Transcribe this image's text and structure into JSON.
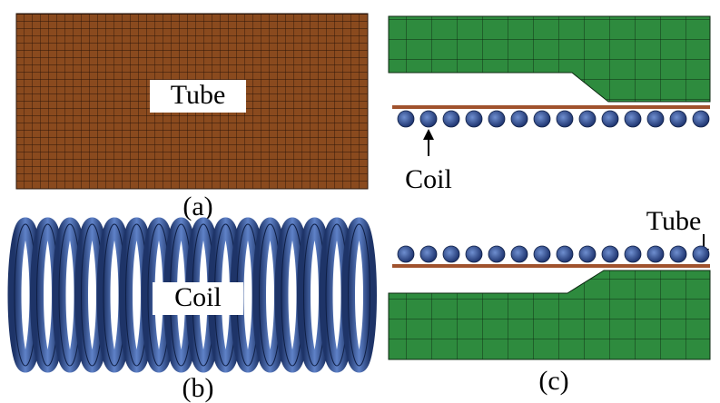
{
  "panels": [
    {
      "label": "(a)",
      "tag": "Tube"
    },
    {
      "label": "(b)",
      "tag": "Coil"
    },
    {
      "label": "(c)",
      "coil_tag": "Coil",
      "tube_tag": "Tube"
    }
  ]
}
